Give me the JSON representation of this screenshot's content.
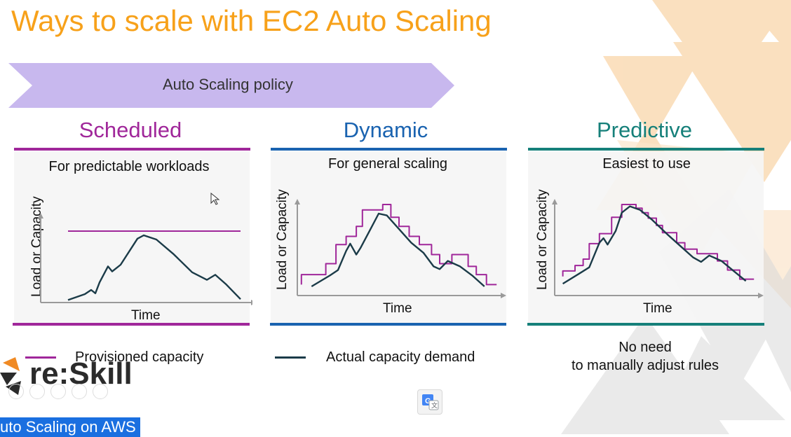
{
  "slide": {
    "title": "Ways to scale with EC2 Auto Scaling",
    "policy_label": "Auto Scaling policy"
  },
  "columns": [
    {
      "heading": "Scheduled",
      "subtitle": "For predictable workloads",
      "color": "#A0279A",
      "ylabel": "Load or Capacity",
      "xlabel": "Time"
    },
    {
      "heading": "Dynamic",
      "subtitle": "For general scaling",
      "color": "#1A63B0",
      "ylabel": "Load or Capacity",
      "xlabel": "Time"
    },
    {
      "heading": "Predictive",
      "subtitle": "Easiest to use",
      "color": "#16807A",
      "ylabel": "Load or Capacity",
      "xlabel": "Time"
    }
  ],
  "legend": {
    "provisioned": "Provisioned capacity",
    "actual": "Actual capacity demand",
    "provisioned_color": "#A0279A",
    "actual_color": "#1B3B48"
  },
  "note": {
    "line1": "No need",
    "line2": "to manually adjust rules"
  },
  "brand": {
    "logo_text": "re:Skill"
  },
  "video": {
    "caption": "uto Scaling on AWS"
  },
  "icons": {
    "translate": "google-translate-icon",
    "cursor": "mouse-pointer-icon"
  },
  "chart_data": [
    {
      "type": "line",
      "title": "Scheduled",
      "xlabel": "Time",
      "ylabel": "Load or Capacity",
      "grid": false,
      "legend": "none",
      "series": [
        {
          "name": "Provisioned capacity",
          "color": "#A0279A",
          "points": [
            [
              0.13,
              0.85
            ],
            [
              0.95,
              0.85
            ]
          ]
        },
        {
          "name": "Actual capacity demand",
          "color": "#1B3B48",
          "points": [
            [
              0.13,
              0.03
            ],
            [
              0.21,
              0.1
            ],
            [
              0.24,
              0.15
            ],
            [
              0.26,
              0.11
            ],
            [
              0.28,
              0.24
            ],
            [
              0.32,
              0.43
            ],
            [
              0.34,
              0.37
            ],
            [
              0.38,
              0.45
            ],
            [
              0.46,
              0.76
            ],
            [
              0.49,
              0.8
            ],
            [
              0.55,
              0.75
            ],
            [
              0.63,
              0.58
            ],
            [
              0.72,
              0.36
            ],
            [
              0.79,
              0.27
            ],
            [
              0.83,
              0.33
            ],
            [
              0.88,
              0.22
            ],
            [
              0.95,
              0.04
            ]
          ]
        }
      ]
    },
    {
      "type": "line",
      "title": "Dynamic",
      "xlabel": "Time",
      "ylabel": "Load or Capacity",
      "grid": false,
      "legend": "none",
      "series": [
        {
          "name": "Provisioned capacity",
          "color": "#A0279A",
          "points": [
            [
              0.02,
              0.12
            ],
            [
              0.02,
              0.23
            ],
            [
              0.14,
              0.23
            ],
            [
              0.14,
              0.35
            ],
            [
              0.19,
              0.35
            ],
            [
              0.19,
              0.56
            ],
            [
              0.24,
              0.56
            ],
            [
              0.24,
              0.65
            ],
            [
              0.29,
              0.65
            ],
            [
              0.29,
              0.76
            ],
            [
              0.32,
              0.76
            ],
            [
              0.32,
              0.94
            ],
            [
              0.42,
              0.94
            ],
            [
              0.42,
              1.0
            ],
            [
              0.46,
              1.0
            ],
            [
              0.46,
              0.86
            ],
            [
              0.5,
              0.86
            ],
            [
              0.5,
              0.76
            ],
            [
              0.55,
              0.76
            ],
            [
              0.55,
              0.65
            ],
            [
              0.6,
              0.65
            ],
            [
              0.6,
              0.56
            ],
            [
              0.66,
              0.56
            ],
            [
              0.66,
              0.45
            ],
            [
              0.7,
              0.45
            ],
            [
              0.7,
              0.35
            ],
            [
              0.76,
              0.35
            ],
            [
              0.76,
              0.45
            ],
            [
              0.84,
              0.45
            ],
            [
              0.84,
              0.32
            ],
            [
              0.88,
              0.32
            ],
            [
              0.88,
              0.23
            ],
            [
              0.93,
              0.23
            ],
            [
              0.93,
              0.12
            ],
            [
              0.98,
              0.12
            ]
          ]
        },
        {
          "name": "Actual capacity demand",
          "color": "#1B3B48",
          "points": [
            [
              0.07,
              0.1
            ],
            [
              0.16,
              0.22
            ],
            [
              0.2,
              0.28
            ],
            [
              0.24,
              0.49
            ],
            [
              0.26,
              0.57
            ],
            [
              0.29,
              0.45
            ],
            [
              0.31,
              0.52
            ],
            [
              0.36,
              0.73
            ],
            [
              0.4,
              0.9
            ],
            [
              0.44,
              0.88
            ],
            [
              0.5,
              0.73
            ],
            [
              0.56,
              0.58
            ],
            [
              0.62,
              0.47
            ],
            [
              0.67,
              0.32
            ],
            [
              0.7,
              0.29
            ],
            [
              0.74,
              0.38
            ],
            [
              0.8,
              0.32
            ],
            [
              0.86,
              0.22
            ],
            [
              0.92,
              0.1
            ]
          ]
        }
      ]
    },
    {
      "type": "line",
      "title": "Predictive",
      "xlabel": "Time",
      "ylabel": "Load or Capacity",
      "grid": false,
      "legend": "none",
      "series": [
        {
          "name": "Provisioned capacity",
          "color": "#A0279A",
          "points": [
            [
              0.04,
              0.21
            ],
            [
              0.04,
              0.27
            ],
            [
              0.1,
              0.27
            ],
            [
              0.1,
              0.33
            ],
            [
              0.14,
              0.33
            ],
            [
              0.14,
              0.4
            ],
            [
              0.17,
              0.4
            ],
            [
              0.17,
              0.57
            ],
            [
              0.22,
              0.57
            ],
            [
              0.22,
              0.68
            ],
            [
              0.28,
              0.68
            ],
            [
              0.28,
              0.86
            ],
            [
              0.33,
              0.86
            ],
            [
              0.33,
              1.0
            ],
            [
              0.4,
              1.0
            ],
            [
              0.4,
              0.96
            ],
            [
              0.43,
              0.96
            ],
            [
              0.43,
              0.91
            ],
            [
              0.46,
              0.91
            ],
            [
              0.46,
              0.85
            ],
            [
              0.5,
              0.85
            ],
            [
              0.5,
              0.77
            ],
            [
              0.53,
              0.77
            ],
            [
              0.53,
              0.69
            ],
            [
              0.6,
              0.69
            ],
            [
              0.6,
              0.58
            ],
            [
              0.64,
              0.58
            ],
            [
              0.64,
              0.51
            ],
            [
              0.7,
              0.51
            ],
            [
              0.7,
              0.46
            ],
            [
              0.8,
              0.46
            ],
            [
              0.8,
              0.38
            ],
            [
              0.85,
              0.38
            ],
            [
              0.85,
              0.28
            ],
            [
              0.91,
              0.28
            ],
            [
              0.91,
              0.18
            ],
            [
              0.98,
              0.18
            ]
          ]
        },
        {
          "name": "Actual capacity demand",
          "color": "#1B3B48",
          "points": [
            [
              0.04,
              0.13
            ],
            [
              0.12,
              0.24
            ],
            [
              0.17,
              0.31
            ],
            [
              0.22,
              0.58
            ],
            [
              0.24,
              0.63
            ],
            [
              0.26,
              0.56
            ],
            [
              0.3,
              0.71
            ],
            [
              0.33,
              0.91
            ],
            [
              0.37,
              0.98
            ],
            [
              0.42,
              0.94
            ],
            [
              0.48,
              0.83
            ],
            [
              0.56,
              0.66
            ],
            [
              0.62,
              0.54
            ],
            [
              0.68,
              0.42
            ],
            [
              0.72,
              0.37
            ],
            [
              0.76,
              0.44
            ],
            [
              0.82,
              0.38
            ],
            [
              0.88,
              0.27
            ],
            [
              0.94,
              0.16
            ]
          ]
        }
      ]
    }
  ]
}
